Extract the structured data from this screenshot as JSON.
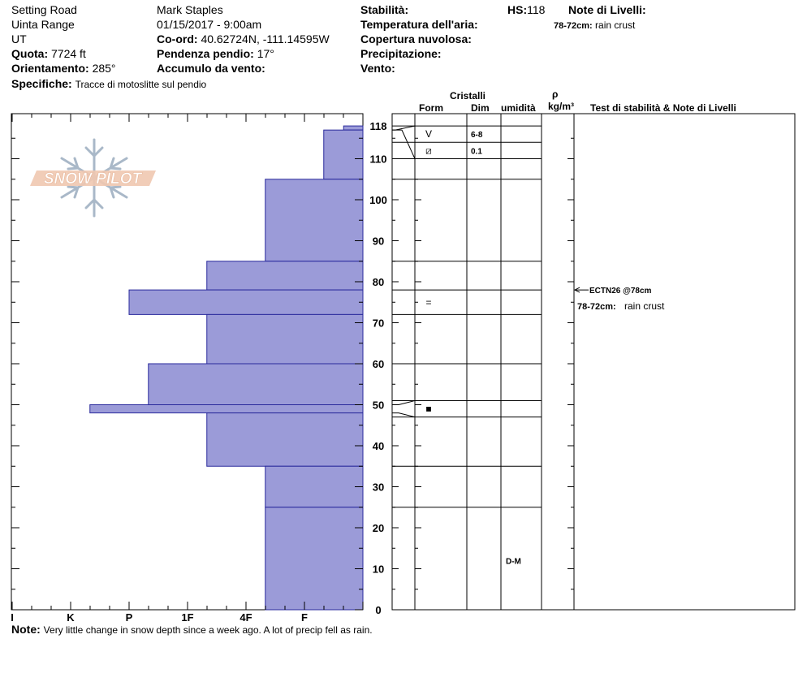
{
  "header": {
    "location": "Setting Road",
    "range": "Uinta Range",
    "state": "UT",
    "elevation_label": "Quota:",
    "elevation_value": "7724 ft",
    "aspect_label": "Orientamento:",
    "aspect_value": "285°",
    "specifics_label": "Specifiche:",
    "specifics_value": "Tracce di motoslitte sul pendio",
    "observer": "Mark Staples",
    "datetime": "01/15/2017 - 9:00am",
    "coord_label": "Co-ord:",
    "coord_value": "40.62724N, -111.14595W",
    "slope_label": "Pendenza pendio:",
    "slope_value": "17°",
    "wind_loading_label": "Accumulo da vento:",
    "stability_label": "Stabilità:",
    "air_temp_label": "Temperatura dell'aria:",
    "cloud_label": "Copertura nuvolosa:",
    "precip_label": "Precipitazione:",
    "wind_label": "Vento:",
    "hs_label": "HS:",
    "hs_value": "118",
    "layer_notes_label": "Note di Livelli:",
    "layer_note_range": "78-72cm:",
    "layer_note_text": "rain crust"
  },
  "logo": {
    "text": "SNOW PILOT"
  },
  "columns": {
    "crystals": "Cristalli",
    "form": "Form",
    "dim": "Dim",
    "moisture": "umidità",
    "rho": "ρ",
    "density_unit": "kg/m³",
    "tests_notes": "Test di stabilità & Note di Livelli"
  },
  "note": {
    "label": "Note:",
    "text": "Very little change in snow depth since a week ago. A lot of precip fell as rain."
  },
  "chart_data": {
    "type": "bar",
    "orientation": "horizontal",
    "title": "",
    "ylabel": "",
    "ylim": [
      0,
      118
    ],
    "y_ticks": [
      0,
      10,
      20,
      30,
      40,
      50,
      60,
      70,
      80,
      90,
      100,
      110,
      118
    ],
    "x_categories": [
      "I",
      "K",
      "P",
      "1F",
      "4F",
      "F"
    ],
    "hardness_scale_note": "hardness index: F=1, 4F=2, 1F=3, P=4, K=5, I=6",
    "hardness_layers": [
      {
        "top": 118,
        "bottom": 117,
        "hardness": "F-",
        "index": 0.33
      },
      {
        "top": 117,
        "bottom": 105,
        "hardness": "F+",
        "index": 0.67
      },
      {
        "top": 105,
        "bottom": 85,
        "hardness": "4F",
        "index": 1.67
      },
      {
        "top": 85,
        "bottom": 78,
        "hardness": "1F",
        "index": 2.67
      },
      {
        "top": 78,
        "bottom": 72,
        "hardness": "P+",
        "index": 4.0
      },
      {
        "top": 72,
        "bottom": 60,
        "hardness": "1F",
        "index": 2.67
      },
      {
        "top": 60,
        "bottom": 50,
        "hardness": "P-",
        "index": 3.67
      },
      {
        "top": 50,
        "bottom": 48,
        "hardness": "K-",
        "index": 4.67
      },
      {
        "top": 48,
        "bottom": 35,
        "hardness": "1F",
        "index": 2.67
      },
      {
        "top": 35,
        "bottom": 25,
        "hardness": "4F",
        "index": 1.67
      },
      {
        "top": 25,
        "bottom": 0,
        "hardness": "4F",
        "index": 1.67
      }
    ],
    "layer_boundaries_profile": [
      118,
      117,
      114,
      110,
      105,
      85,
      78,
      72,
      60,
      51,
      47,
      35,
      25
    ],
    "layer_boundaries_table": [
      118,
      114,
      110,
      105,
      85,
      78,
      72,
      60,
      51,
      47,
      35,
      25
    ],
    "crystals": [
      {
        "top": 118,
        "bottom": 114,
        "form": "V",
        "dim": "6-8"
      },
      {
        "top": 114,
        "bottom": 110,
        "form": "⧄",
        "dim": "0.1"
      },
      {
        "top": 78,
        "bottom": 72,
        "form": "=",
        "dim": ""
      },
      {
        "top": 51,
        "bottom": 47,
        "form": "■",
        "dim": ""
      }
    ],
    "moisture": [
      {
        "at": 12,
        "value": "D-M"
      }
    ],
    "stability_tests": [
      {
        "depth": 78,
        "text": "ECTN26 @78cm"
      }
    ],
    "layer_notes": [
      {
        "range": "78-72cm:",
        "text": "rain crust"
      }
    ],
    "colors": {
      "bar_fill": "#9b9bd8",
      "bar_stroke": "#2a2a9c"
    }
  }
}
